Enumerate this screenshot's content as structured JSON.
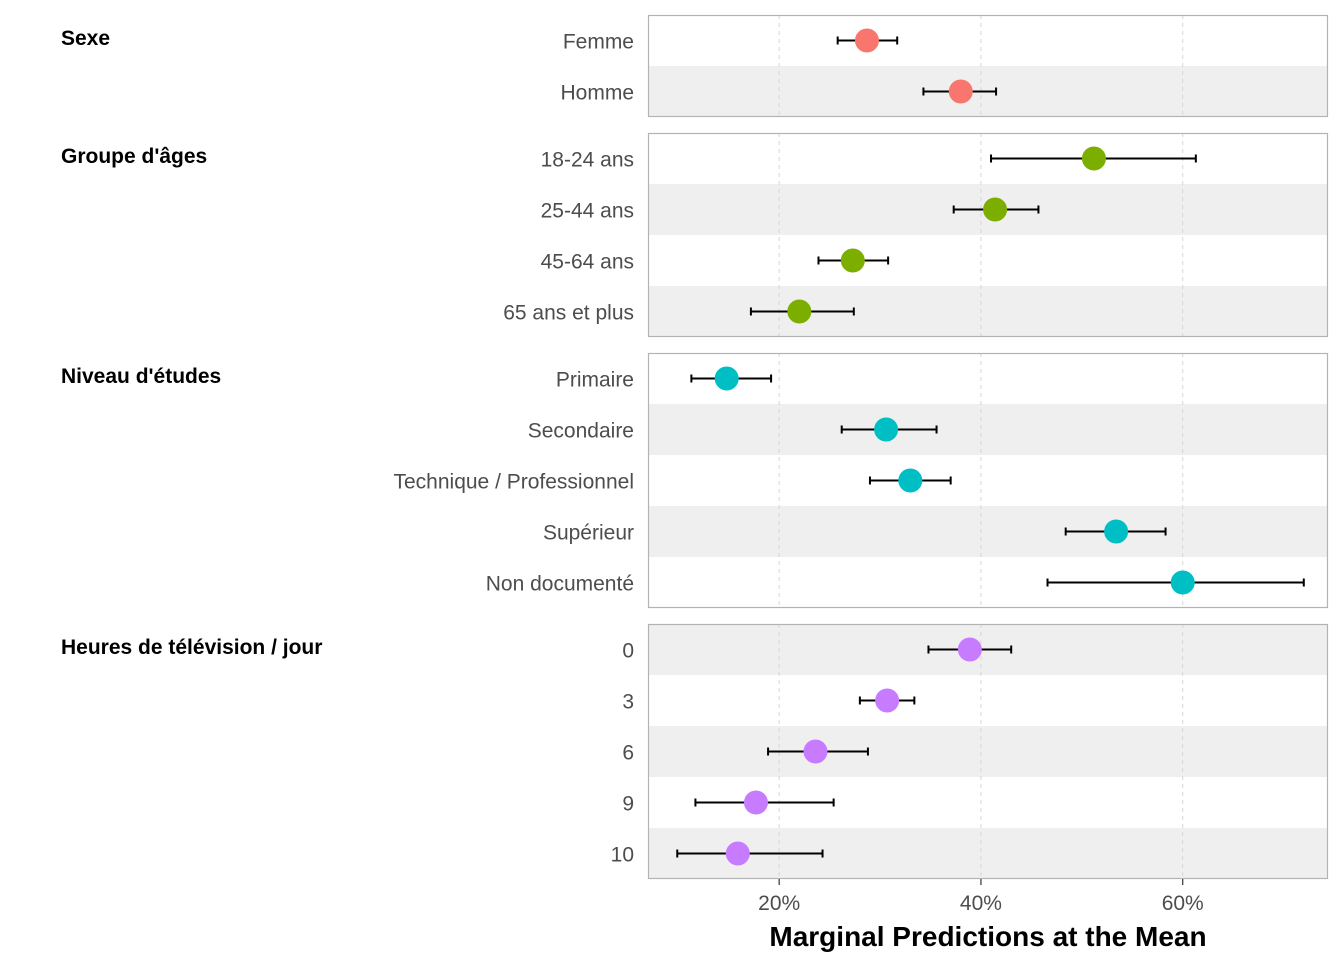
{
  "chart_data": {
    "type": "scatter",
    "xlabel": "Marginal Predictions at the Mean",
    "xlim": [
      0.07,
      0.744
    ],
    "x_ticks": [
      0.2,
      0.4,
      0.6
    ],
    "x_tick_labels": [
      "20%",
      "40%",
      "60%"
    ],
    "grid": "vertical dashed",
    "groups": [
      {
        "title": "Sexe",
        "color": "#F8766D",
        "items": [
          {
            "label": "Femme",
            "value": 0.287,
            "lo": 0.258,
            "hi": 0.317
          },
          {
            "label": "Homme",
            "value": 0.38,
            "lo": 0.343,
            "hi": 0.415
          }
        ]
      },
      {
        "title": "Groupe d'âges",
        "color": "#7CAE00",
        "items": [
          {
            "label": "18-24 ans",
            "value": 0.512,
            "lo": 0.41,
            "hi": 0.613
          },
          {
            "label": "25-44 ans",
            "value": 0.414,
            "lo": 0.373,
            "hi": 0.457
          },
          {
            "label": "45-64 ans",
            "value": 0.273,
            "lo": 0.239,
            "hi": 0.308
          },
          {
            "label": "65 ans et plus",
            "value": 0.22,
            "lo": 0.172,
            "hi": 0.274
          }
        ]
      },
      {
        "title": "Niveau d'études",
        "color": "#00BFC4",
        "items": [
          {
            "label": "Primaire",
            "value": 0.148,
            "lo": 0.113,
            "hi": 0.192
          },
          {
            "label": "Secondaire",
            "value": 0.306,
            "lo": 0.262,
            "hi": 0.356
          },
          {
            "label": "Technique / Professionnel",
            "value": 0.33,
            "lo": 0.29,
            "hi": 0.37
          },
          {
            "label": "Supérieur",
            "value": 0.534,
            "lo": 0.484,
            "hi": 0.583
          },
          {
            "label": "Non documenté",
            "value": 0.6,
            "lo": 0.466,
            "hi": 0.72
          }
        ]
      },
      {
        "title": "Heures de télévision / jour",
        "color": "#C77CFF",
        "items": [
          {
            "label": "0",
            "value": 0.389,
            "lo": 0.348,
            "hi": 0.43
          },
          {
            "label": "3",
            "value": 0.307,
            "lo": 0.28,
            "hi": 0.334
          },
          {
            "label": "6",
            "value": 0.236,
            "lo": 0.189,
            "hi": 0.288
          },
          {
            "label": "9",
            "value": 0.177,
            "lo": 0.117,
            "hi": 0.254
          },
          {
            "label": "10",
            "value": 0.159,
            "lo": 0.099,
            "hi": 0.243
          }
        ]
      }
    ]
  }
}
